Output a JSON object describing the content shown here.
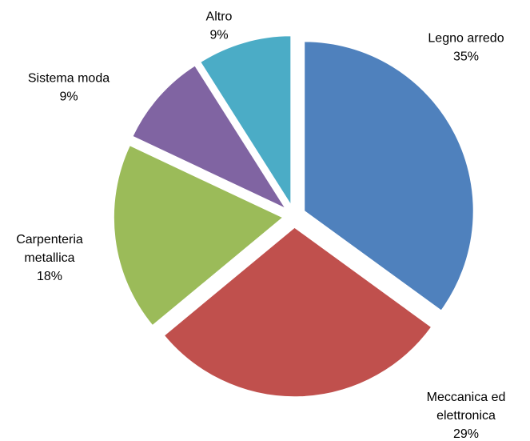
{
  "chart_data": {
    "type": "pie",
    "categories": [
      "Legno arredo",
      "Meccanica ed elettronica",
      "Carpenteria metallica",
      "Sistema moda",
      "Altro"
    ],
    "values": [
      35,
      29,
      18,
      9,
      9
    ],
    "value_labels": [
      "35%",
      "29%",
      "18%",
      "9%",
      "9%"
    ],
    "colors": [
      "#4f81bd",
      "#c0504d",
      "#9bbb59",
      "#8064a2",
      "#4bacc6"
    ],
    "exploded": true
  }
}
